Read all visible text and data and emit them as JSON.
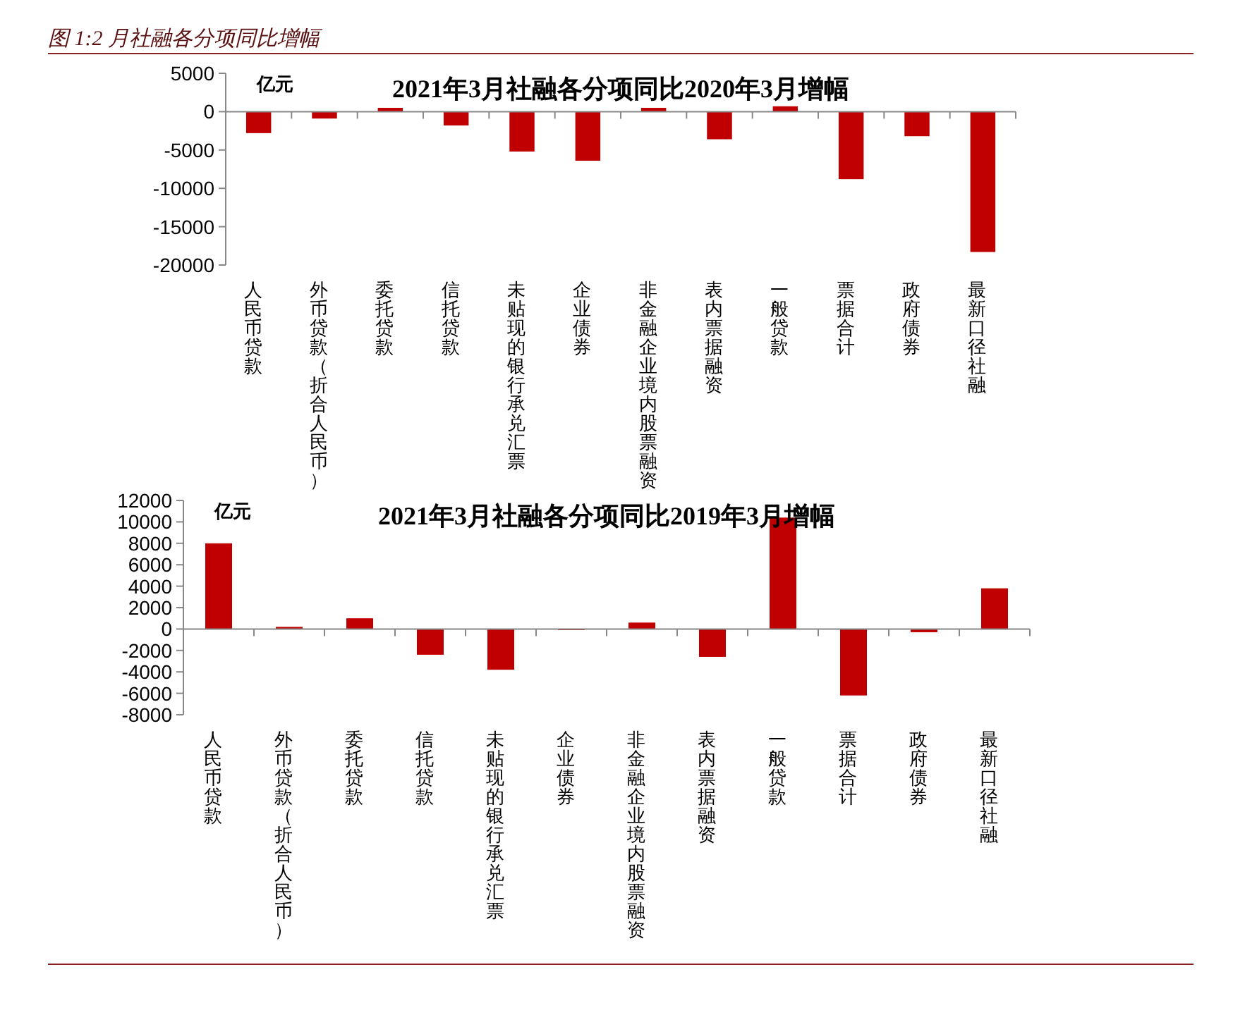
{
  "chart_data": [
    {
      "type": "bar",
      "title": "2021年3月社融各分项同比2020年3月增幅",
      "ylabel": "亿元",
      "annotations": [
        "图 1:2 月社融各分项同比增幅"
      ],
      "categories": [
        "人民币贷款",
        "外币贷款（折合人民币）",
        "委托贷款",
        "信托贷款",
        "未贴现的银行承兑汇票",
        "企业债券",
        "非金融企业境内股票融资",
        "表内票据融资",
        "一般贷款",
        "票据合计",
        "政府债券",
        "最新口径社融"
      ],
      "values": [
        -2800,
        -900,
        500,
        -1800,
        -5200,
        -6400,
        500,
        -3600,
        700,
        -8800,
        -3200,
        -18300
      ],
      "color": "#c00000",
      "ylim": [
        -20000,
        5000
      ],
      "yticks": [
        -20000,
        -15000,
        -10000,
        -5000,
        0,
        5000
      ]
    },
    {
      "type": "bar",
      "title": "2021年3月社融各分项同比2019年3月增幅",
      "ylabel": "亿元",
      "categories": [
        "人民币贷款",
        "外币贷款（折合人民币）",
        "委托贷款",
        "信托贷款",
        "未贴现的银行承兑汇票",
        "企业债券",
        "非金融企业境内股票融资",
        "表内票据融资",
        "一般贷款",
        "票据合计",
        "政府债券",
        "最新口径社融"
      ],
      "values": [
        8000,
        200,
        1000,
        -2400,
        -3800,
        -100,
        600,
        -2600,
        10400,
        -6200,
        -300,
        3800
      ],
      "color": "#c00000",
      "ylim": [
        -8000,
        12000
      ],
      "yticks": [
        -8000,
        -6000,
        -4000,
        -2000,
        0,
        2000,
        4000,
        6000,
        8000,
        10000,
        12000
      ]
    }
  ]
}
